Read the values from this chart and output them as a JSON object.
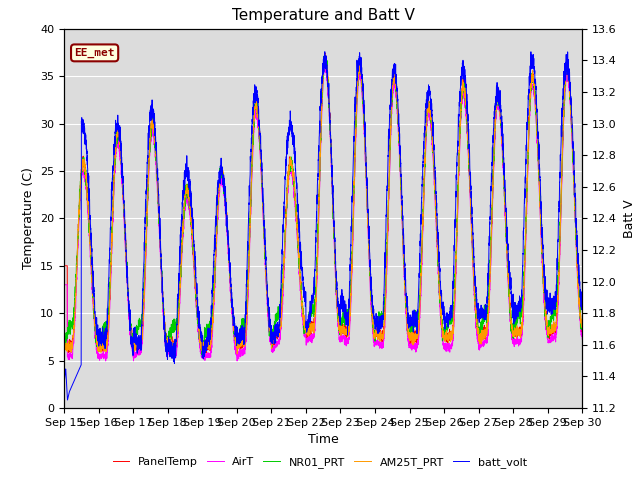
{
  "title": "Temperature and Batt V",
  "xlabel": "Time",
  "ylabel_left": "Temperature (C)",
  "ylabel_right": "Batt V",
  "ylim_left": [
    0,
    40
  ],
  "ylim_right": [
    11.2,
    13.6
  ],
  "xtick_labels": [
    "Sep 15",
    "Sep 16",
    "Sep 17",
    "Sep 18",
    "Sep 19",
    "Sep 20",
    "Sep 21",
    "Sep 22",
    "Sep 23",
    "Sep 24",
    "Sep 25",
    "Sep 26",
    "Sep 27",
    "Sep 28",
    "Sep 29",
    "Sep 30"
  ],
  "legend_labels": [
    "PanelTemp",
    "AirT",
    "NR01_PRT",
    "AM25T_PRT",
    "batt_volt"
  ],
  "colors": {
    "PanelTemp": "#ff0000",
    "AirT": "#ff00ff",
    "NR01_PRT": "#00cc00",
    "AM25T_PRT": "#ff9900",
    "batt_volt": "#0000ff"
  },
  "EE_met_label": "EE_met",
  "bg_color": "#dcdcdc",
  "fig_bg": "#ffffff",
  "title_fontsize": 11,
  "axis_fontsize": 9,
  "tick_fontsize": 8,
  "day_peaks_temp": [
    26,
    29,
    30,
    23,
    25,
    32,
    26,
    37,
    36,
    35,
    32,
    34,
    33,
    35,
    36
  ],
  "day_peaks_batt": [
    13.0,
    13.0,
    13.1,
    12.7,
    12.7,
    13.2,
    13.0,
    13.4,
    13.4,
    13.35,
    13.2,
    13.35,
    13.2,
    13.4,
    13.4
  ],
  "night_min_temp": [
    6.5,
    6.5,
    7.0,
    6.5,
    6.5,
    7.0,
    8.0,
    8.5,
    8.0,
    7.5,
    7.5,
    7.5,
    8.0,
    8.0,
    8.5
  ],
  "night_min_batt": [
    11.65,
    11.65,
    11.6,
    11.55,
    11.65,
    11.65,
    11.7,
    11.9,
    11.75,
    11.75,
    11.75,
    11.8,
    11.8,
    11.85,
    11.85
  ]
}
